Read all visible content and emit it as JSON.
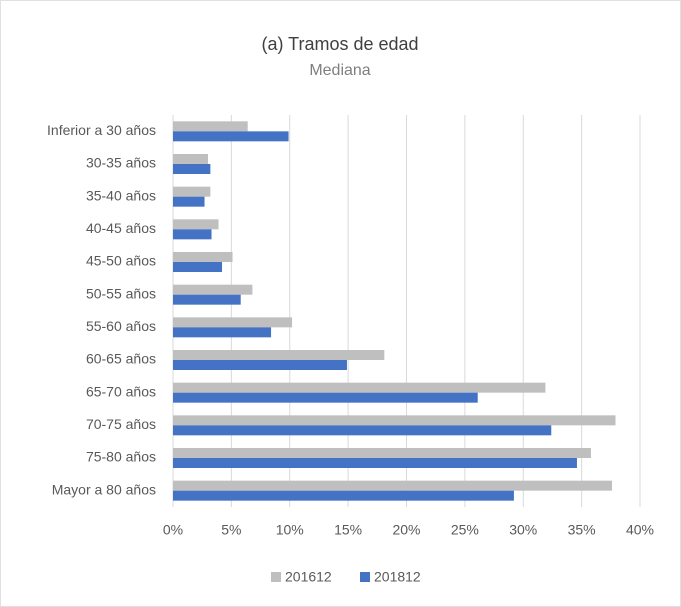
{
  "chart_data": {
    "type": "bar",
    "orientation": "horizontal",
    "title": "(a) Tramos de edad",
    "subtitle": "Mediana",
    "categories": [
      "Inferior a 30 años",
      "30-35 años",
      "35-40 años",
      "40-45 años",
      "45-50 años",
      "50-55 años",
      "55-60 años",
      "60-65 años",
      "65-70 años",
      "70-75 años",
      "75-80 años",
      "Mayor a 80 años"
    ],
    "series": [
      {
        "name": "201612",
        "color": "#bfbfbf",
        "values": [
          6.4,
          3.0,
          3.2,
          3.9,
          5.1,
          6.8,
          10.2,
          18.1,
          31.9,
          37.9,
          35.8,
          37.6
        ]
      },
      {
        "name": "201812",
        "color": "#4472c4",
        "values": [
          9.9,
          3.2,
          2.7,
          3.3,
          4.2,
          5.8,
          8.4,
          14.9,
          26.1,
          32.4,
          34.6,
          29.2
        ]
      }
    ],
    "xlim": [
      0,
      40
    ],
    "xticks": [
      {
        "value": 0,
        "label": "0%"
      },
      {
        "value": 5,
        "label": "5%"
      },
      {
        "value": 10,
        "label": "10%"
      },
      {
        "value": 15,
        "label": "15%"
      },
      {
        "value": 20,
        "label": "20%"
      },
      {
        "value": 25,
        "label": "25%"
      },
      {
        "value": 30,
        "label": "30%"
      },
      {
        "value": 35,
        "label": "35%"
      },
      {
        "value": 40,
        "label": "40%"
      }
    ],
    "grid": true,
    "legend": "bottom"
  }
}
